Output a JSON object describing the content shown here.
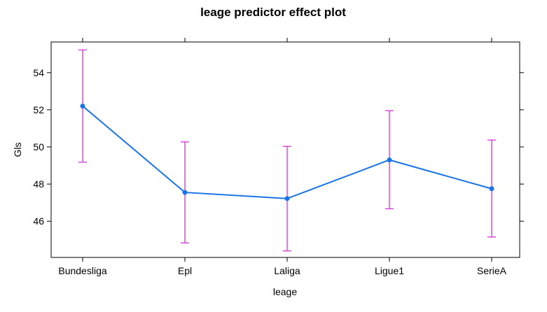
{
  "chart_data": {
    "type": "line",
    "title": "leage predictor effect plot",
    "xlabel": "leage",
    "ylabel": "Gls",
    "categories": [
      "Bundesliga",
      "Epl",
      "Laliga",
      "Ligue1",
      "SerieA"
    ],
    "values": [
      52.2,
      47.55,
      47.22,
      49.3,
      47.75
    ],
    "lower": [
      49.18,
      44.83,
      44.4,
      46.67,
      45.15
    ],
    "upper": [
      55.22,
      50.27,
      50.03,
      51.95,
      50.37
    ],
    "yticks": [
      46,
      48,
      50,
      52,
      54
    ],
    "ylim": [
      44.05,
      55.65
    ],
    "grid": false,
    "colors": {
      "line": "#1a75e8",
      "error_bars": "#d633d6",
      "axes": "#000000"
    }
  }
}
